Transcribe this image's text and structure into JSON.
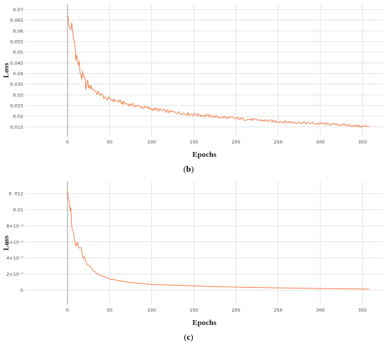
{
  "chart_data": [
    {
      "type": "line",
      "panel_label_open": "(",
      "panel_label": "b",
      "panel_label_close": ")",
      "xlabel": "Epochs",
      "ylabel": "Loss",
      "xlim": [
        -50,
        375
      ],
      "ylim": [
        0.0105,
        0.0725
      ],
      "x_ticks": [
        0,
        50,
        100,
        150,
        200,
        250,
        300,
        350
      ],
      "y_ticks": [
        {
          "value": 0.015,
          "label": "0.015"
        },
        {
          "value": 0.02,
          "label": "0.02"
        },
        {
          "value": 0.025,
          "label": "0.025"
        },
        {
          "value": 0.03,
          "label": "0.03"
        },
        {
          "value": 0.035,
          "label": "0.035"
        },
        {
          "value": 0.04,
          "label": "0.04"
        },
        {
          "value": 0.045,
          "label": "0.045"
        },
        {
          "value": 0.05,
          "label": "0.05"
        },
        {
          "value": 0.055,
          "label": "0.055"
        },
        {
          "value": 0.06,
          "label": "0.06"
        },
        {
          "value": 0.065,
          "label": "0.065"
        },
        {
          "value": 0.07,
          "label": "0.07"
        }
      ],
      "grid": true,
      "color": "#f07f4c",
      "series": [
        {
          "x": [
            0,
            2,
            4,
            6,
            8,
            10,
            12,
            14,
            16,
            18,
            20,
            25,
            30,
            35,
            40,
            45,
            50,
            60,
            70,
            80,
            90,
            100,
            120,
            140,
            160,
            180,
            200,
            225,
            250,
            275,
            300,
            325,
            350,
            358
          ],
          "values": [
            0.067,
            0.061,
            0.063,
            0.058,
            0.055,
            0.05,
            0.046,
            0.043,
            0.04,
            0.038,
            0.036,
            0.034,
            0.033,
            0.031,
            0.03,
            0.0285,
            0.028,
            0.027,
            0.0258,
            0.025,
            0.0242,
            0.0235,
            0.0222,
            0.0212,
            0.0204,
            0.0196,
            0.019,
            0.0182,
            0.0175,
            0.017,
            0.0165,
            0.016,
            0.0152,
            0.0154
          ]
        }
      ]
    },
    {
      "type": "line",
      "panel_label_open": "(",
      "panel_label": "c",
      "panel_label_close": ")",
      "xlabel": "Epochs",
      "ylabel": "Loss",
      "xlim": [
        -50,
        375
      ],
      "ylim": [
        -0.0018,
        0.0135
      ],
      "x_ticks": [
        0,
        50,
        100,
        150,
        200,
        250,
        300,
        350
      ],
      "y_ticks": [
        {
          "value": 0,
          "label": "0"
        },
        {
          "value": 0.002,
          "label": "2×10⁻³"
        },
        {
          "value": 0.004,
          "label": "4×10⁻³"
        },
        {
          "value": 0.006,
          "label": "6×10⁻³"
        },
        {
          "value": 0.008,
          "label": "8×10⁻³"
        },
        {
          "value": 0.01,
          "label": "0.01"
        },
        {
          "value": 0.012,
          "label": "0. 012"
        }
      ],
      "grid": true,
      "color": "#f07f4c",
      "series": [
        {
          "x": [
            0,
            2,
            4,
            6,
            8,
            10,
            12,
            14,
            16,
            18,
            20,
            25,
            30,
            35,
            40,
            45,
            50,
            60,
            70,
            80,
            90,
            100,
            125,
            150,
            175,
            200,
            225,
            250,
            275,
            300,
            325,
            350,
            358
          ],
          "values": [
            0.0125,
            0.011,
            0.0095,
            0.0075,
            0.0065,
            0.0058,
            0.006,
            0.0055,
            0.005,
            0.0045,
            0.004,
            0.0032,
            0.0025,
            0.0021,
            0.0018,
            0.0016,
            0.0014,
            0.0012,
            0.001,
            0.0009,
            0.0008,
            0.0007,
            0.00062,
            0.00052,
            0.00044,
            0.00038,
            0.00033,
            0.00028,
            0.00024,
            0.0002,
            0.00017,
            0.00014,
            0.00013
          ]
        }
      ]
    }
  ]
}
